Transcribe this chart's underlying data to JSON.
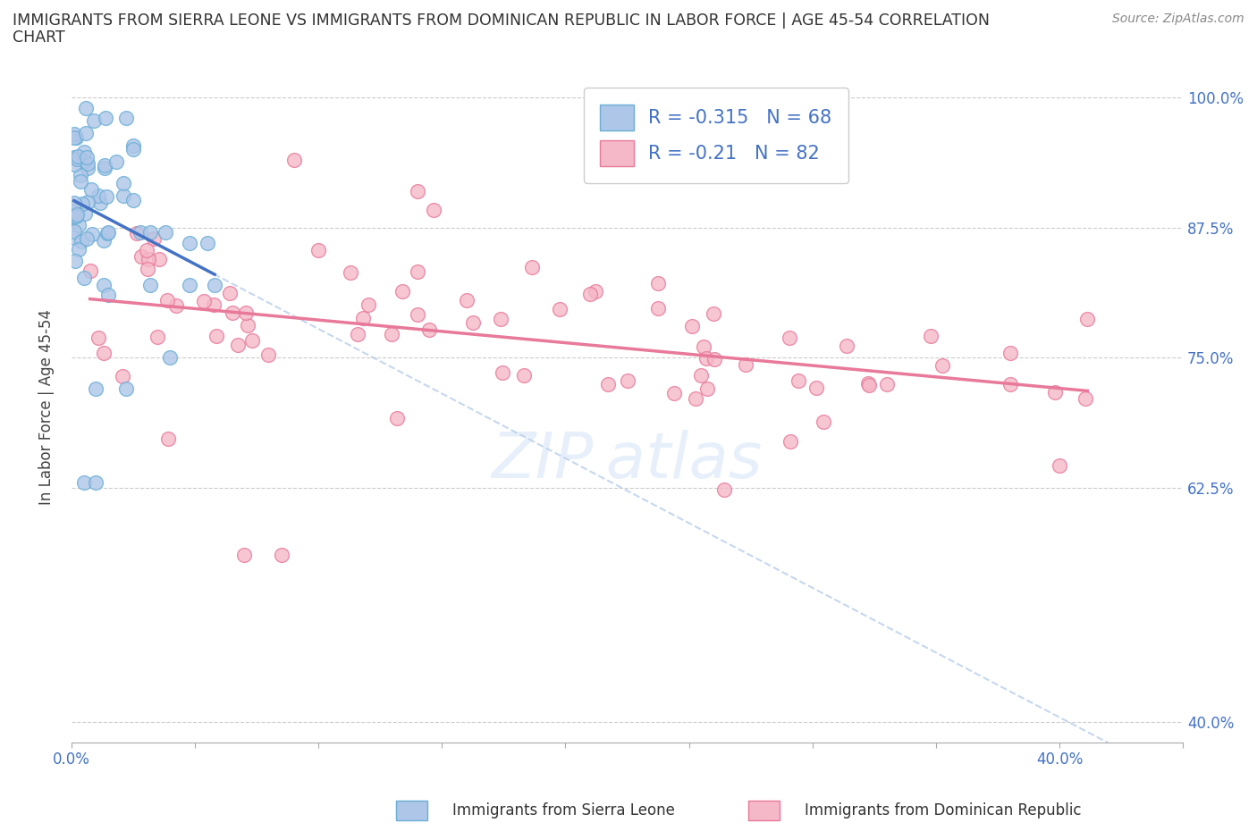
{
  "title": "IMMIGRANTS FROM SIERRA LEONE VS IMMIGRANTS FROM DOMINICAN REPUBLIC IN LABOR FORCE | AGE 45-54 CORRELATION\nCHART",
  "source_text": "Source: ZipAtlas.com",
  "ylabel": "In Labor Force | Age 45-54",
  "x_min": 0.0,
  "x_max": 0.45,
  "y_min": 0.38,
  "y_max": 1.025,
  "y_ticks": [
    0.4,
    0.625,
    0.75,
    0.875,
    1.0
  ],
  "y_tick_labels": [
    "40.0%",
    "62.5%",
    "75.0%",
    "87.5%",
    "100.0%"
  ],
  "sierra_leone_color": "#aec6e8",
  "sierra_leone_edge": "#6aaed6",
  "dominican_color": "#f4b8c8",
  "dominican_edge": "#e8799a",
  "sierra_leone_R": -0.315,
  "sierra_leone_N": 68,
  "dominican_R": -0.21,
  "dominican_N": 82,
  "sierra_leone_line_color": "#4472c4",
  "dominican_line_color": "#e8799a",
  "dashed_line_color": "#aec6e8",
  "background_color": "#ffffff",
  "legend_entries": [
    "Immigrants from Sierra Leone",
    "Immigrants from Dominican Republic"
  ],
  "legend_colors": [
    "#aec6e8",
    "#f4b8c8"
  ],
  "legend_edge_colors": [
    "#6aaed6",
    "#e8799a"
  ]
}
